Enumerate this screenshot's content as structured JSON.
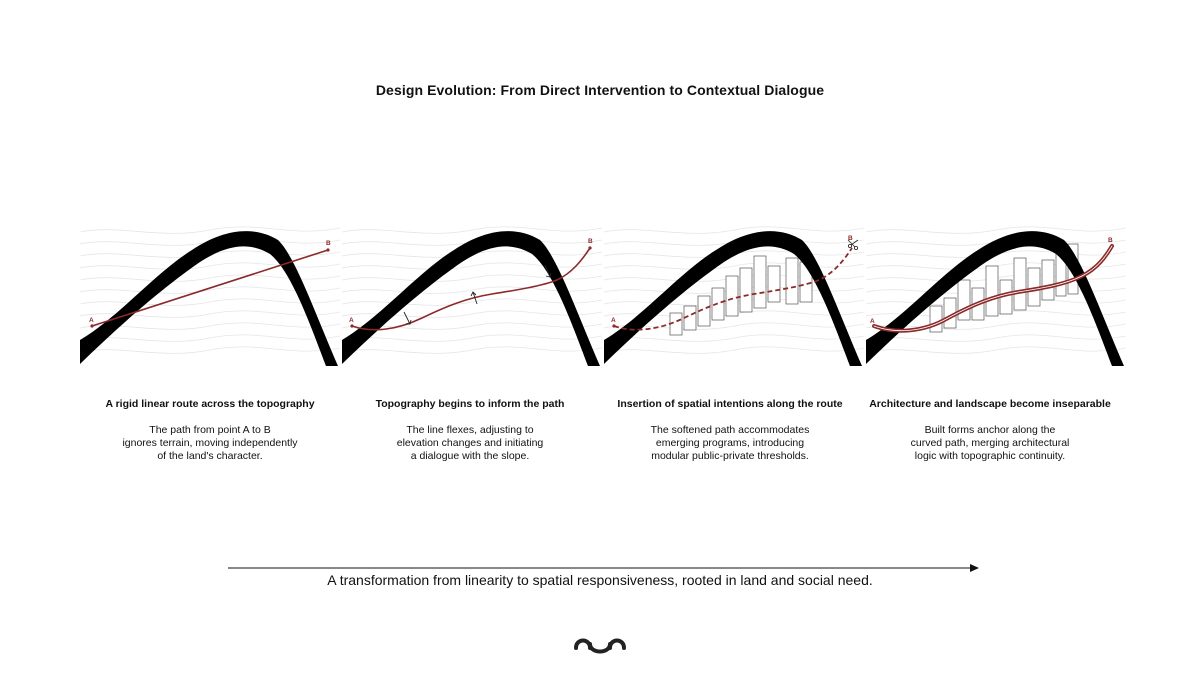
{
  "title": "Design Evolution: From Direct Intervention to Contextual Dialogue",
  "point_labels": {
    "start": "A",
    "end": "B"
  },
  "colors": {
    "route": "#8c2a2a",
    "terrain": "#000000",
    "contour": "#e6e6e6",
    "forms_stroke": "#555555"
  },
  "panels": [
    {
      "heading": "A rigid linear route across the topography",
      "body": [
        "The path from point A to B",
        "ignores terrain, moving independently",
        "of the land's character."
      ]
    },
    {
      "heading": "Topography begins to inform the path",
      "body": [
        "The line flexes, adjusting to",
        "elevation changes and initiating",
        "a dialogue with the slope."
      ]
    },
    {
      "heading": "Insertion of spatial intentions along the route",
      "body": [
        "The softened path accommodates",
        "emerging programs, introducing",
        "modular public-private thresholds."
      ]
    },
    {
      "heading": "Architecture and landscape become inseparable",
      "body": [
        "Built forms anchor along the",
        "curved path, merging architectural",
        "logic with topographic continuity."
      ]
    }
  ],
  "timeline": "A transformation from linearity to spatial responsiveness, rooted in land and social need.",
  "icons": {
    "arrow": "arrow-right-icon",
    "logo": "wave-logo-icon",
    "scissors": "scissors-icon"
  }
}
